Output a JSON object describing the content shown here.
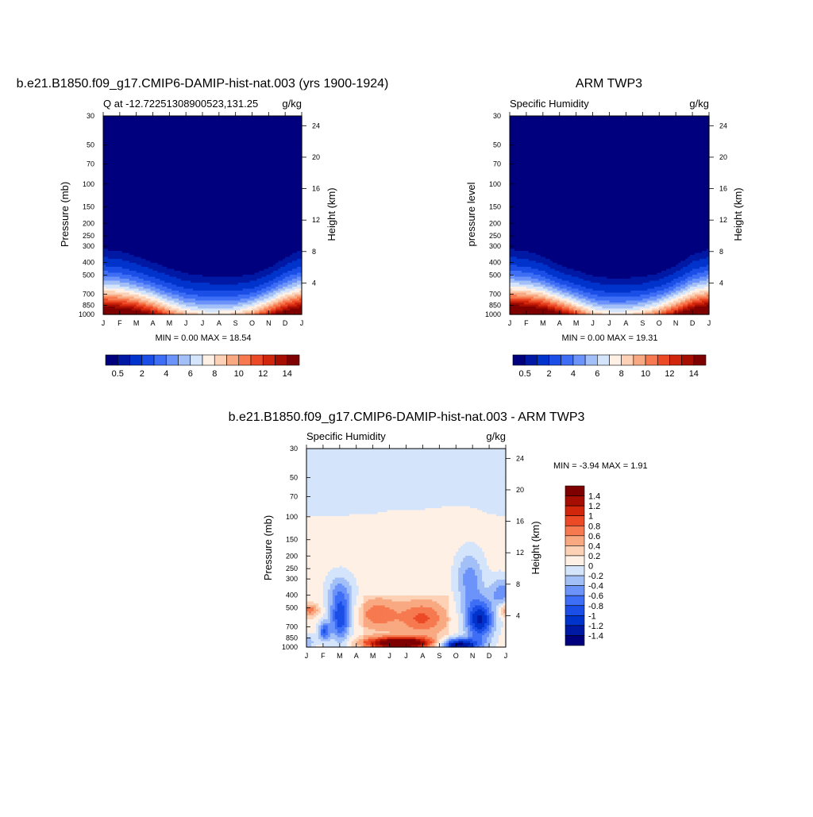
{
  "figure_titles": {
    "top_left": "b.e21.B1850.f09_g17.CMIP6-DAMIP-hist-nat.003 (yrs 1900-1924)",
    "top_right": "ARM TWP3",
    "bottom": "b.e21.B1850.f09_g17.CMIP6-DAMIP-hist-nat.003 - ARM TWP3"
  },
  "palette": {
    "abs": [
      "#00007f",
      "#0019a5",
      "#0033cc",
      "#1a4ee6",
      "#3d6ef5",
      "#6b93fa",
      "#a3bff8",
      "#d4e4fb",
      "#fff0e6",
      "#fcd1b5",
      "#f9a981",
      "#f6794f",
      "#ec4a26",
      "#d1250c",
      "#a70e02",
      "#7f0000"
    ],
    "diff": [
      "#00007f",
      "#0019a5",
      "#0033cc",
      "#1a4ee6",
      "#3d6ef5",
      "#6b93fa",
      "#a3bff8",
      "#d4e4fb",
      "#fff0e6",
      "#fcd1b5",
      "#f9a981",
      "#f6794f",
      "#ec4a26",
      "#d1250c",
      "#a70e02",
      "#7f0000"
    ]
  },
  "chart_data": [
    {
      "type": "heatmap",
      "title": "Q at -12.72251308900523,131.25",
      "units": "g/kg",
      "xlabel": "",
      "ylabel": "Pressure (mb)",
      "y2label": "Height (km)",
      "x_ticks": [
        "J",
        "F",
        "M",
        "A",
        "M",
        "J",
        "J",
        "A",
        "S",
        "O",
        "N",
        "D",
        "J"
      ],
      "y_ticks": [
        30,
        50,
        70,
        100,
        150,
        200,
        250,
        300,
        400,
        500,
        700,
        850,
        1000
      ],
      "y2_ticks": [
        24,
        20,
        16,
        12,
        8,
        4
      ],
      "ylim": [
        30,
        1000
      ],
      "scale": "log-pressure",
      "stats": "MIN =   0.00 MAX =  18.54",
      "min": 0.0,
      "max": 18.54,
      "colorbar": {
        "orientation": "horizontal",
        "levels": [
          0.5,
          1,
          2,
          3,
          4,
          5,
          6,
          7,
          8,
          9,
          10,
          11,
          12,
          13,
          14
        ],
        "labels": [
          "0.5",
          "2",
          "4",
          "6",
          "8",
          "10",
          "12",
          "14"
        ]
      },
      "moisture_top_mb": [
        300,
        310,
        340,
        380,
        420,
        460,
        480,
        490,
        490,
        470,
        420,
        350,
        300
      ],
      "surface_peak_gkg": [
        17.5,
        17,
        16,
        14,
        11,
        9,
        8,
        8,
        8.5,
        10,
        13,
        16,
        17.5
      ]
    },
    {
      "type": "heatmap",
      "title": "Specific Humidity",
      "units": "g/kg",
      "xlabel": "",
      "ylabel": "pressure level",
      "y2label": "Height (km)",
      "x_ticks": [
        "J",
        "F",
        "M",
        "A",
        "M",
        "J",
        "J",
        "A",
        "S",
        "O",
        "N",
        "D",
        "J"
      ],
      "y_ticks": [
        30,
        50,
        70,
        100,
        150,
        200,
        250,
        300,
        400,
        500,
        700,
        850,
        1000
      ],
      "y2_ticks": [
        24,
        20,
        16,
        12,
        8,
        4
      ],
      "ylim": [
        30,
        1000
      ],
      "scale": "log-pressure",
      "stats": "MIN =   0.00 MAX =  19.31",
      "min": 0.0,
      "max": 19.31,
      "colorbar": {
        "orientation": "horizontal",
        "levels": [
          0.5,
          1,
          2,
          3,
          4,
          5,
          6,
          7,
          8,
          9,
          10,
          11,
          12,
          13,
          14
        ],
        "labels": [
          "0.5",
          "2",
          "4",
          "6",
          "8",
          "10",
          "12",
          "14"
        ]
      },
      "moisture_top_mb": [
        300,
        310,
        340,
        400,
        440,
        480,
        500,
        500,
        490,
        460,
        400,
        330,
        300
      ],
      "surface_peak_gkg": [
        18.5,
        18,
        17,
        15,
        12,
        9,
        8,
        8,
        9,
        11,
        14,
        17,
        18.5
      ]
    },
    {
      "type": "heatmap",
      "title": "Specific Humidity",
      "units": "g/kg",
      "xlabel": "",
      "ylabel": "Pressure (mb)",
      "y2label": "Height (km)",
      "x_ticks": [
        "J",
        "F",
        "M",
        "A",
        "M",
        "J",
        "J",
        "A",
        "S",
        "O",
        "N",
        "D",
        "J"
      ],
      "y_ticks": [
        30,
        50,
        70,
        100,
        150,
        200,
        250,
        300,
        400,
        500,
        700,
        850,
        1000
      ],
      "y2_ticks": [
        24,
        20,
        16,
        12,
        8,
        4
      ],
      "ylim": [
        30,
        1000
      ],
      "scale": "log-pressure",
      "stats": "MIN =  -3.94 MAX =   1.91",
      "min": -3.94,
      "max": 1.91,
      "colorbar": {
        "orientation": "vertical",
        "levels": [
          -1.4,
          -1.2,
          -1,
          -0.8,
          -0.6,
          -0.4,
          -0.2,
          0,
          0.2,
          0.4,
          0.6,
          0.8,
          1,
          1.2,
          1.4
        ],
        "labels": [
          "1.4",
          "1.2",
          "1",
          "0.8",
          "0.6",
          "0.4",
          "0.2",
          "0",
          "-0.2",
          "-0.4",
          "-0.6",
          "-0.8",
          "-1",
          "-1.2",
          "-1.4"
        ]
      },
      "upper_boundary_mb": [
        100,
        100,
        100,
        95,
        95,
        90,
        90,
        88,
        85,
        82,
        85,
        95,
        100
      ]
    }
  ]
}
